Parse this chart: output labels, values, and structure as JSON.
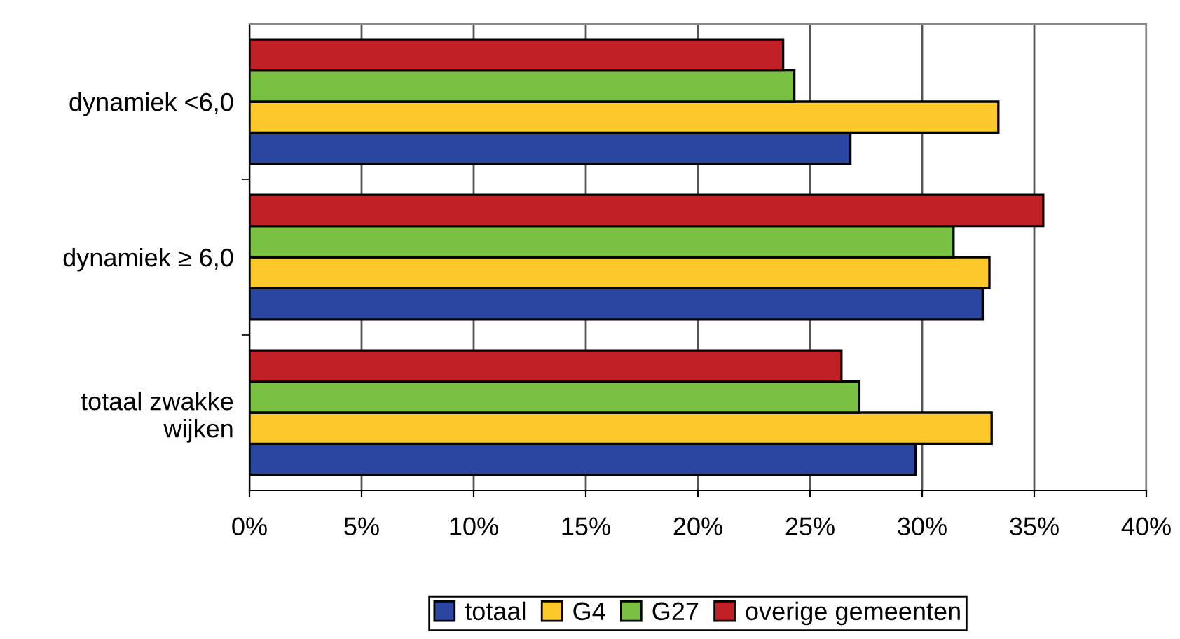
{
  "chart_data": {
    "type": "bar",
    "orientation": "horizontal",
    "categories": [
      "dynamiek <6,0",
      "dynamiek ≥ 6,0",
      "totaal zwakke\nwijken"
    ],
    "series": [
      {
        "name": "totaal",
        "color": "#2a46a0",
        "values": [
          26.8,
          32.7,
          29.7
        ]
      },
      {
        "name": "G4",
        "color": "#fdc82a",
        "values": [
          33.4,
          33.0,
          33.1
        ]
      },
      {
        "name": "G27",
        "color": "#7ac143",
        "values": [
          24.3,
          31.4,
          27.2
        ]
      },
      {
        "name": "overige gemeenten",
        "color": "#c02026",
        "values": [
          23.8,
          35.4,
          26.4
        ]
      }
    ],
    "xlim": [
      0,
      40
    ],
    "xticks": [
      {
        "value": 0,
        "label": "0%"
      },
      {
        "value": 5,
        "label": "5%"
      },
      {
        "value": 10,
        "label": "10%"
      },
      {
        "value": 15,
        "label": "15%"
      },
      {
        "value": 20,
        "label": "20%"
      },
      {
        "value": 25,
        "label": "25%"
      },
      {
        "value": 30,
        "label": "30%"
      },
      {
        "value": 35,
        "label": "35%"
      },
      {
        "value": 40,
        "label": "40%"
      }
    ],
    "grid": "x",
    "legend": "bottom"
  }
}
